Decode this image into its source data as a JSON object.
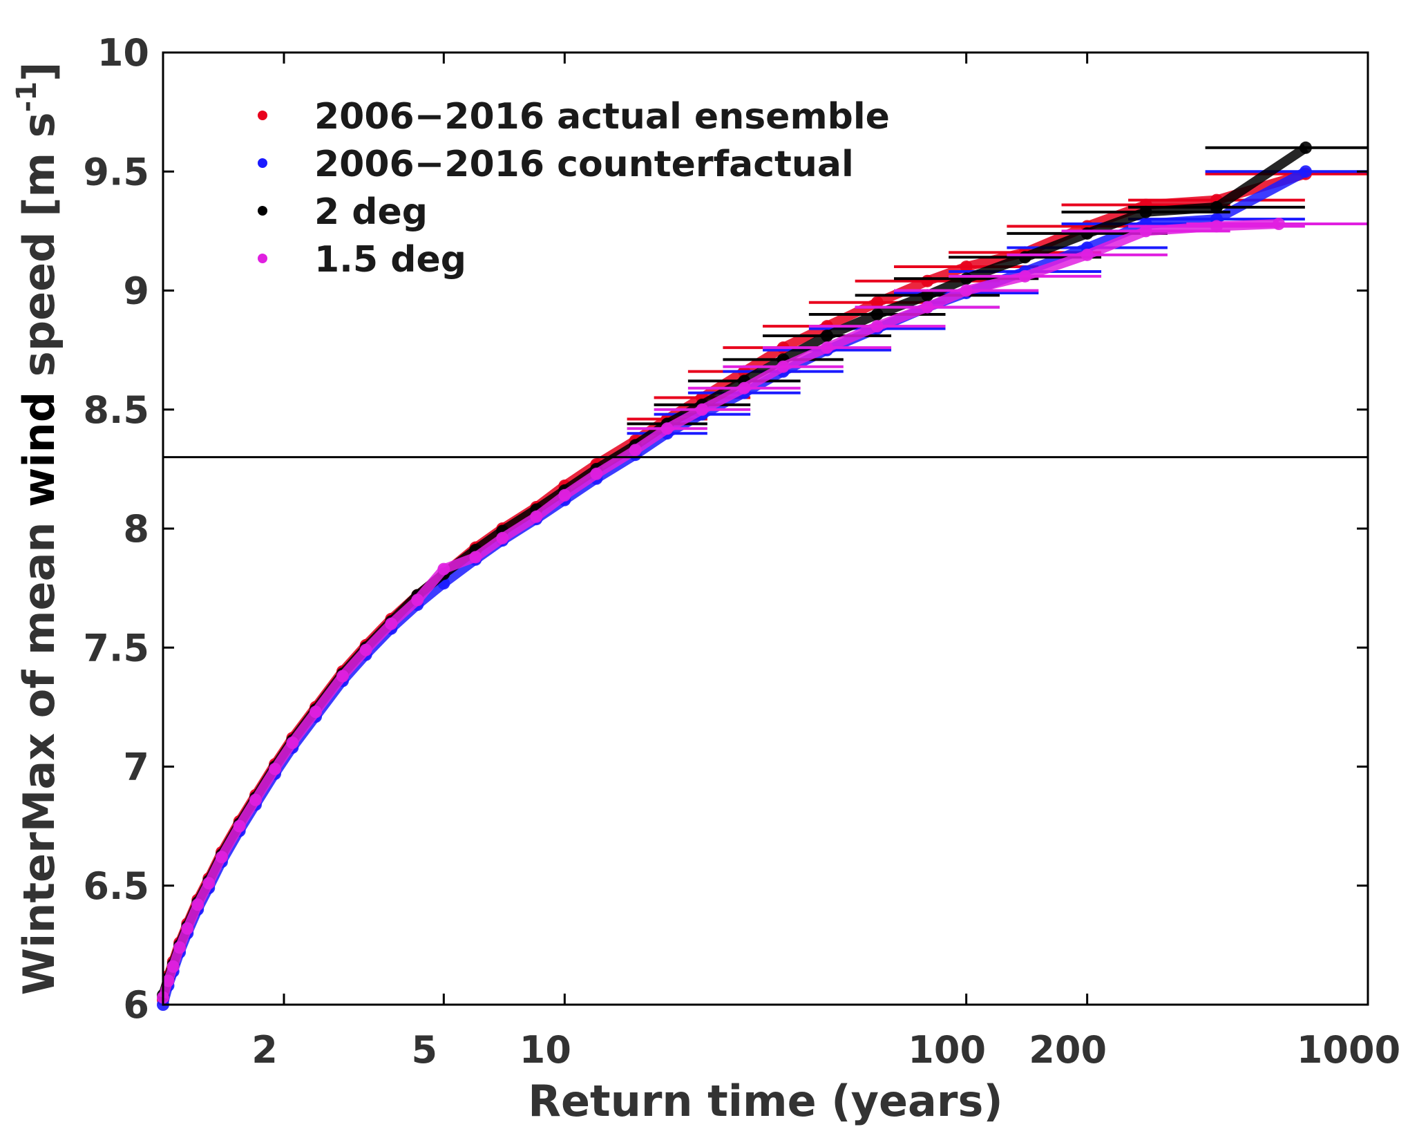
{
  "chart_data": {
    "type": "scatter",
    "xlabel": "Return time (years)",
    "ylabel_parts": [
      "WinterMax of mean ",
      "wind",
      " speed [m s",
      "-1",
      "]"
    ],
    "xscale": "log",
    "xlim": [
      1,
      1000
    ],
    "ylim": [
      6,
      10
    ],
    "xticks": [
      2,
      5,
      10,
      100,
      200,
      1000
    ],
    "xtick_labels": [
      "2",
      "5",
      "10",
      "100",
      "200",
      "1000"
    ],
    "yticks": [
      6,
      6.5,
      7,
      7.5,
      8,
      8.5,
      9,
      9.5,
      10
    ],
    "ytick_labels": [
      "6",
      "6.5",
      "7",
      "7.5",
      "8",
      "8.5",
      "9",
      "9.5",
      "10"
    ],
    "reference_line_y": 8.3,
    "legend_position": "top-left",
    "grid": false,
    "series": [
      {
        "name": "2006−2016 actual ensemble",
        "color": "#e8001c",
        "points": [
          [
            1.0,
            6.02
          ],
          [
            1.03,
            6.12
          ],
          [
            1.06,
            6.18
          ],
          [
            1.1,
            6.26
          ],
          [
            1.15,
            6.34
          ],
          [
            1.22,
            6.44
          ],
          [
            1.3,
            6.53
          ],
          [
            1.4,
            6.64
          ],
          [
            1.55,
            6.77
          ],
          [
            1.7,
            6.88
          ],
          [
            1.9,
            7.01
          ],
          [
            2.1,
            7.12
          ],
          [
            2.4,
            7.25
          ],
          [
            2.8,
            7.4
          ],
          [
            3.2,
            7.51
          ],
          [
            3.7,
            7.62
          ],
          [
            4.3,
            7.72
          ],
          [
            5,
            7.81
          ],
          [
            6,
            7.92
          ],
          [
            7,
            8.0
          ],
          [
            8.5,
            8.09
          ],
          [
            10,
            8.18
          ],
          [
            12,
            8.27
          ],
          [
            15,
            8.37
          ],
          [
            18,
            8.46
          ],
          [
            22,
            8.55
          ],
          [
            28,
            8.66
          ],
          [
            35,
            8.76
          ],
          [
            45,
            8.85
          ],
          [
            60,
            8.95
          ],
          [
            80,
            9.04
          ],
          [
            100,
            9.1
          ],
          [
            140,
            9.16
          ],
          [
            200,
            9.27
          ],
          [
            280,
            9.36
          ],
          [
            420,
            9.38
          ],
          [
            700,
            9.49
          ]
        ],
        "err": [
          0,
          0,
          0,
          0,
          0,
          0,
          0,
          0,
          0,
          0,
          0,
          0,
          0,
          0,
          0,
          0,
          0,
          0,
          0,
          0,
          0,
          0,
          0,
          0,
          0.1,
          0.12,
          0.14,
          0.15,
          0.16,
          0.17,
          0.18,
          0.18,
          0.19,
          0.2,
          0.21,
          0.22,
          0.25
        ]
      },
      {
        "name": "2006−2016 counterfactual",
        "color": "#1a1aff",
        "points": [
          [
            1.0,
            6.0
          ],
          [
            1.03,
            6.08
          ],
          [
            1.06,
            6.14
          ],
          [
            1.1,
            6.22
          ],
          [
            1.15,
            6.3
          ],
          [
            1.22,
            6.4
          ],
          [
            1.3,
            6.49
          ],
          [
            1.4,
            6.6
          ],
          [
            1.55,
            6.73
          ],
          [
            1.7,
            6.84
          ],
          [
            1.9,
            6.97
          ],
          [
            2.1,
            7.08
          ],
          [
            2.4,
            7.21
          ],
          [
            2.8,
            7.36
          ],
          [
            3.2,
            7.47
          ],
          [
            3.7,
            7.58
          ],
          [
            4.3,
            7.68
          ],
          [
            5,
            7.77
          ],
          [
            6,
            7.87
          ],
          [
            7,
            7.95
          ],
          [
            8.5,
            8.04
          ],
          [
            10,
            8.12
          ],
          [
            12,
            8.21
          ],
          [
            15,
            8.31
          ],
          [
            18,
            8.4
          ],
          [
            22,
            8.48
          ],
          [
            28,
            8.57
          ],
          [
            35,
            8.66
          ],
          [
            45,
            8.75
          ],
          [
            60,
            8.84
          ],
          [
            80,
            8.93
          ],
          [
            100,
            8.99
          ],
          [
            140,
            9.08
          ],
          [
            200,
            9.18
          ],
          [
            280,
            9.28
          ],
          [
            420,
            9.3
          ],
          [
            700,
            9.5
          ]
        ],
        "err": [
          0,
          0,
          0,
          0,
          0,
          0,
          0,
          0,
          0,
          0,
          0,
          0,
          0,
          0,
          0,
          0,
          0,
          0,
          0,
          0,
          0,
          0,
          0,
          0,
          0.1,
          0.12,
          0.14,
          0.15,
          0.16,
          0.17,
          0.18,
          0.18,
          0.19,
          0.2,
          0.21,
          0.22,
          0.25
        ]
      },
      {
        "name": "2 deg",
        "color": "#000000",
        "points": [
          [
            1.0,
            6.04
          ],
          [
            1.03,
            6.11
          ],
          [
            1.06,
            6.17
          ],
          [
            1.1,
            6.25
          ],
          [
            1.15,
            6.33
          ],
          [
            1.22,
            6.43
          ],
          [
            1.3,
            6.52
          ],
          [
            1.4,
            6.63
          ],
          [
            1.55,
            6.76
          ],
          [
            1.7,
            6.87
          ],
          [
            1.9,
            7.0
          ],
          [
            2.1,
            7.11
          ],
          [
            2.4,
            7.24
          ],
          [
            2.8,
            7.39
          ],
          [
            3.2,
            7.5
          ],
          [
            3.7,
            7.61
          ],
          [
            4.3,
            7.72
          ],
          [
            5,
            7.81
          ],
          [
            6,
            7.91
          ],
          [
            7,
            7.99
          ],
          [
            8.5,
            8.08
          ],
          [
            10,
            8.16
          ],
          [
            12,
            8.25
          ],
          [
            15,
            8.35
          ],
          [
            18,
            8.44
          ],
          [
            22,
            8.52
          ],
          [
            28,
            8.62
          ],
          [
            35,
            8.71
          ],
          [
            45,
            8.81
          ],
          [
            60,
            8.9
          ],
          [
            80,
            8.98
          ],
          [
            100,
            9.05
          ],
          [
            140,
            9.14
          ],
          [
            200,
            9.24
          ],
          [
            280,
            9.33
          ],
          [
            420,
            9.35
          ],
          [
            700,
            9.6
          ]
        ],
        "err": [
          0,
          0,
          0,
          0,
          0,
          0,
          0,
          0,
          0,
          0,
          0,
          0,
          0,
          0,
          0,
          0,
          0,
          0,
          0,
          0,
          0,
          0,
          0,
          0,
          0.1,
          0.12,
          0.14,
          0.15,
          0.16,
          0.17,
          0.18,
          0.18,
          0.19,
          0.2,
          0.21,
          0.22,
          0.25
        ]
      },
      {
        "name": "1.5 deg",
        "color": "#e020e0",
        "points": [
          [
            1.0,
            6.03
          ],
          [
            1.03,
            6.1
          ],
          [
            1.06,
            6.16
          ],
          [
            1.1,
            6.24
          ],
          [
            1.15,
            6.32
          ],
          [
            1.22,
            6.42
          ],
          [
            1.3,
            6.51
          ],
          [
            1.4,
            6.62
          ],
          [
            1.55,
            6.75
          ],
          [
            1.7,
            6.86
          ],
          [
            1.9,
            6.99
          ],
          [
            2.1,
            7.1
          ],
          [
            2.4,
            7.23
          ],
          [
            2.8,
            7.38
          ],
          [
            3.2,
            7.49
          ],
          [
            3.7,
            7.6
          ],
          [
            4.3,
            7.7
          ],
          [
            5,
            7.83
          ],
          [
            6,
            7.88
          ],
          [
            7,
            7.96
          ],
          [
            8.5,
            8.05
          ],
          [
            10,
            8.14
          ],
          [
            12,
            8.23
          ],
          [
            15,
            8.33
          ],
          [
            18,
            8.42
          ],
          [
            22,
            8.5
          ],
          [
            28,
            8.59
          ],
          [
            35,
            8.68
          ],
          [
            45,
            8.76
          ],
          [
            60,
            8.85
          ],
          [
            80,
            8.93
          ],
          [
            100,
            9.0
          ],
          [
            140,
            9.06
          ],
          [
            200,
            9.15
          ],
          [
            280,
            9.25
          ],
          [
            420,
            9.27
          ],
          [
            600,
            9.28
          ]
        ],
        "err": [
          0,
          0,
          0,
          0,
          0,
          0,
          0,
          0,
          0,
          0,
          0,
          0,
          0,
          0,
          0,
          0,
          0,
          0,
          0,
          0,
          0,
          0,
          0,
          0,
          0.1,
          0.12,
          0.14,
          0.15,
          0.16,
          0.17,
          0.18,
          0.18,
          0.19,
          0.2,
          0.21,
          0.22,
          0.23
        ]
      }
    ]
  }
}
